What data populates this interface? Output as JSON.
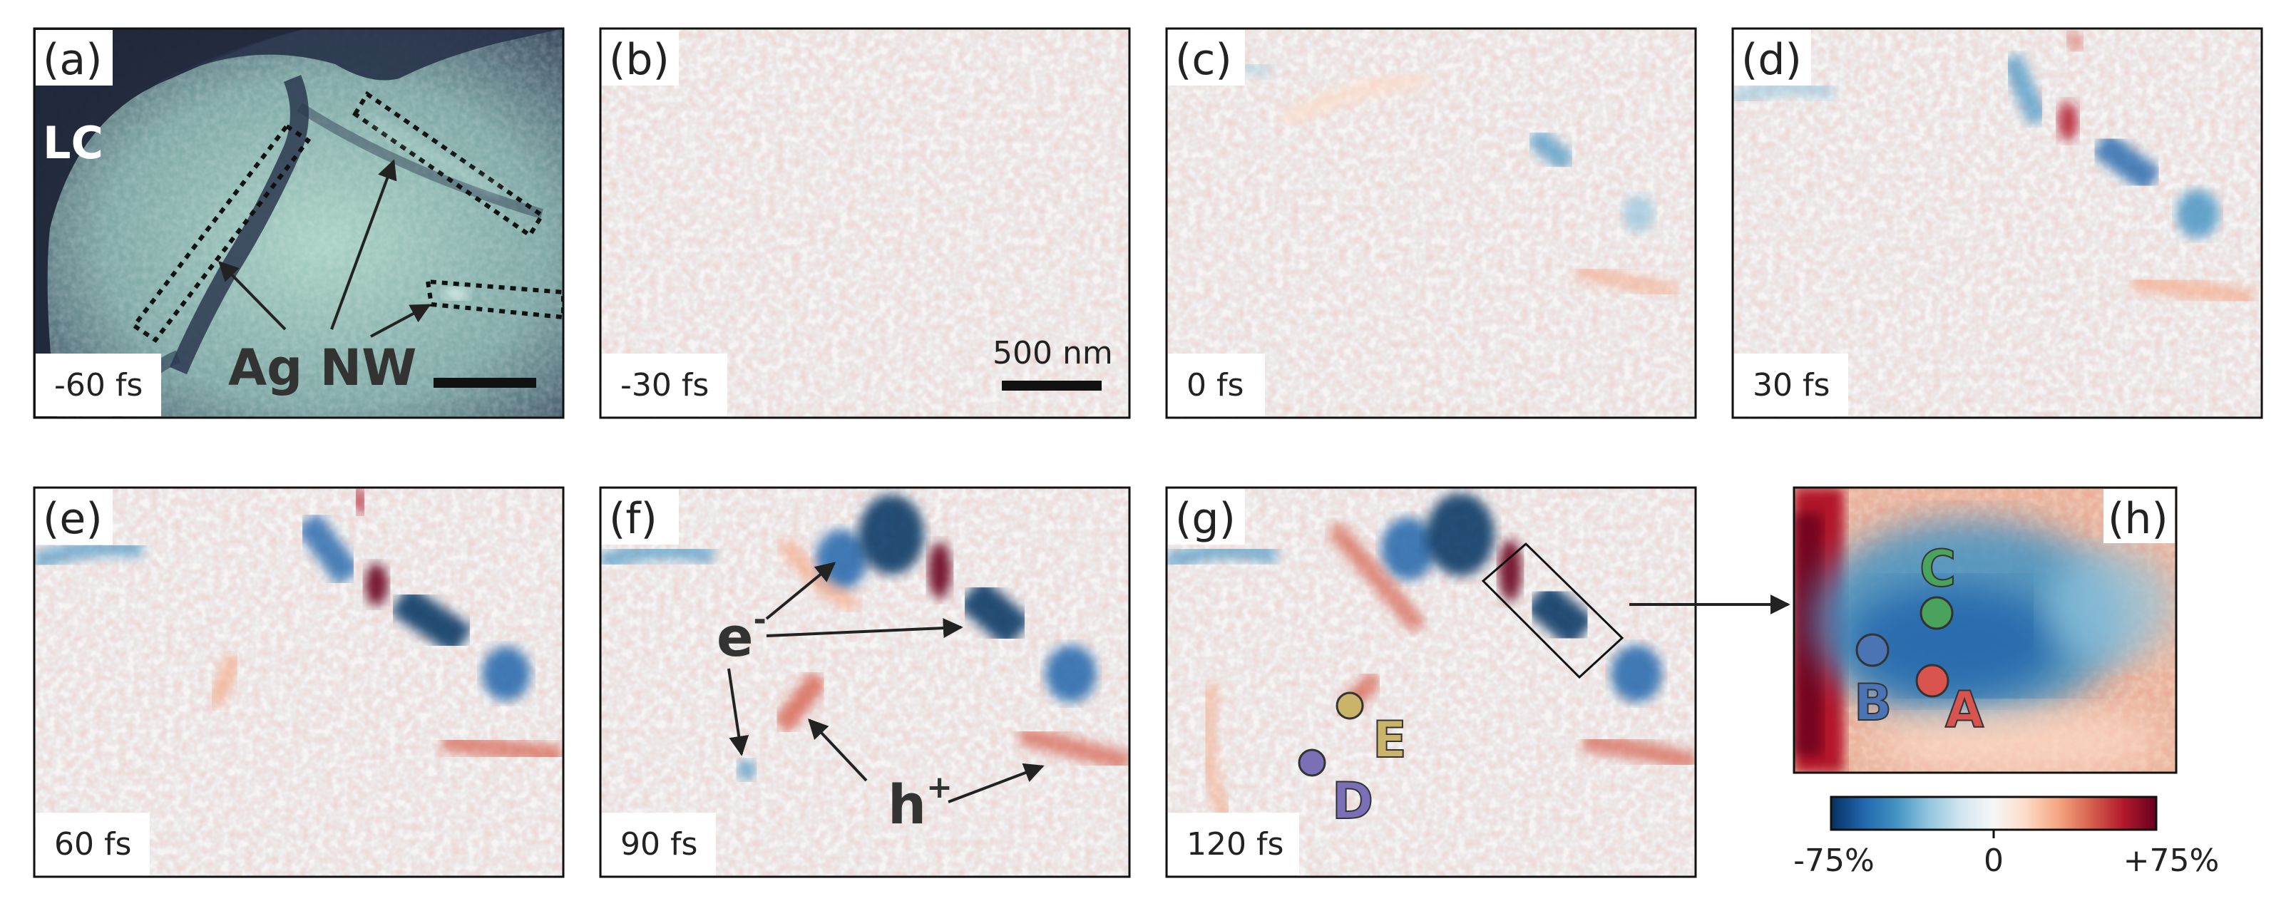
{
  "panels": [
    {
      "label": "(a)",
      "time": "-60 fs"
    },
    {
      "label": "(b)",
      "time": "-30 fs"
    },
    {
      "label": "(c)",
      "time": "0 fs"
    },
    {
      "label": "(d)",
      "time": "30 fs"
    },
    {
      "label": "(e)",
      "time": "60 fs"
    },
    {
      "label": "(f)",
      "time": "90 fs"
    },
    {
      "label": "(g)",
      "time": "120 fs"
    },
    {
      "label": "(h)"
    }
  ],
  "annotations": {
    "lc": "LC",
    "ag_nw": "Ag NW",
    "electron": "e",
    "electron_sup": "-",
    "hole": "h",
    "hole_sup": "+",
    "scalebar": "500 nm"
  },
  "points": [
    {
      "id": "A",
      "color": "#d9534f"
    },
    {
      "id": "B",
      "color": "#4a74b4"
    },
    {
      "id": "C",
      "color": "#4aa35c"
    },
    {
      "id": "D",
      "color": "#7b6fb8"
    },
    {
      "id": "E",
      "color": "#c9b46a"
    }
  ],
  "colorbar": {
    "min_label": "-75%",
    "mid_label": "0",
    "max_label": "+75%",
    "colors": [
      "#053061",
      "#2166ac",
      "#4393c3",
      "#92c5de",
      "#d1e5f0",
      "#f7f7f7",
      "#fddbc7",
      "#f4a582",
      "#d6604d",
      "#b2182b",
      "#67001f"
    ]
  }
}
